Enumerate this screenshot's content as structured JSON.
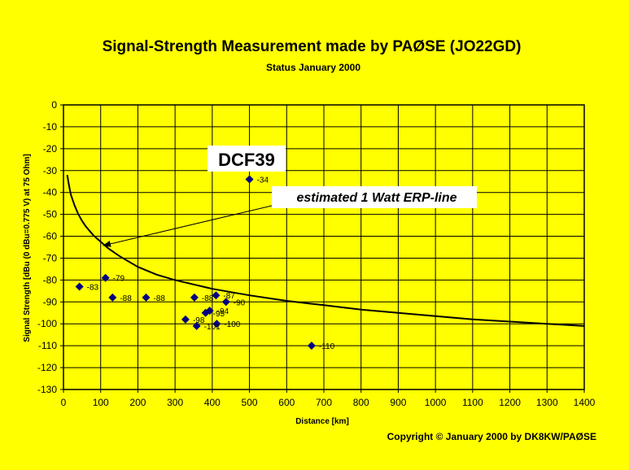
{
  "chart_data": {
    "type": "scatter",
    "title": "Signal-Strength Measurement made by PAØSE (JO22GD)",
    "subtitle": "Status January 2000",
    "xlabel": "Distance [km]",
    "ylabel": "Signal Strength [dBu (0 dBu=0.775 V) at 75 Ohm]",
    "xlim": [
      0,
      1400
    ],
    "ylim": [
      -130,
      0
    ],
    "x_ticks": [
      0,
      100,
      200,
      300,
      400,
      500,
      600,
      700,
      800,
      900,
      1000,
      1100,
      1200,
      1300,
      1400
    ],
    "y_ticks": [
      0,
      -10,
      -20,
      -30,
      -40,
      -50,
      -60,
      -70,
      -80,
      -90,
      -100,
      -110,
      -120,
      -130
    ],
    "grid": true,
    "legend": "none",
    "points": [
      {
        "x": 43,
        "y": -83,
        "label": "-83"
      },
      {
        "x": 113,
        "y": -79,
        "label": "-79"
      },
      {
        "x": 132,
        "y": -88,
        "label": "-88"
      },
      {
        "x": 222,
        "y": -88,
        "label": "-88"
      },
      {
        "x": 352,
        "y": -88,
        "label": "-88"
      },
      {
        "x": 328,
        "y": -98,
        "label": "-98"
      },
      {
        "x": 358,
        "y": -101,
        "label": "-101"
      },
      {
        "x": 382,
        "y": -95,
        "label": "-95"
      },
      {
        "x": 393,
        "y": -94,
        "label": "-94"
      },
      {
        "x": 410,
        "y": -87,
        "label": "-87"
      },
      {
        "x": 437,
        "y": -90,
        "label": "-90"
      },
      {
        "x": 412,
        "y": -100,
        "label": "-100"
      },
      {
        "x": 500,
        "y": -34,
        "label": "-34"
      },
      {
        "x": 667,
        "y": -110,
        "label": "-110"
      }
    ],
    "reference_curve": {
      "x": [
        10,
        15,
        20,
        30,
        40,
        50,
        60,
        70,
        80,
        90,
        100,
        120,
        150,
        200,
        250,
        300,
        350,
        400,
        450,
        500,
        600,
        700,
        800,
        900,
        1000,
        1100,
        1200,
        1300,
        1400
      ],
      "y": [
        -32,
        -37,
        -41,
        -46,
        -50,
        -53,
        -55.5,
        -57.5,
        -59.5,
        -61,
        -62.5,
        -65.5,
        -69,
        -74,
        -77.5,
        -80,
        -82,
        -84,
        -85.5,
        -87,
        -89.5,
        -91.5,
        -93.5,
        -95,
        -96.5,
        -98,
        -99,
        -100,
        -101
      ]
    },
    "annotations": {
      "station": "DCF39",
      "erp_line": "estimated 1 Watt ERP-line"
    }
  },
  "copyright": "Copyright © January 2000 by DK8KW/PAØSE",
  "colors": {
    "background": "#FFFF00",
    "marker": "#000080",
    "curve": "#000000"
  }
}
